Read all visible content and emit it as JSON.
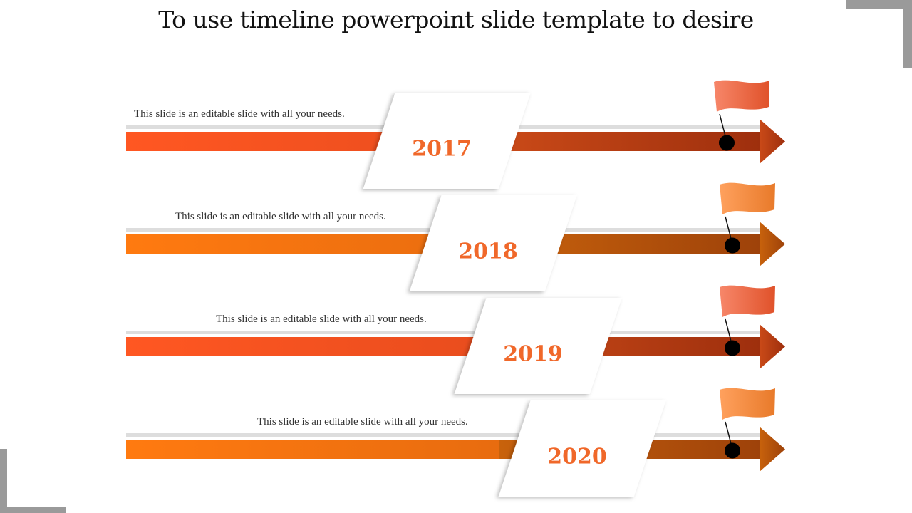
{
  "title": "To use timeline powerpoint slide template to desire",
  "colors": {
    "accent_orange": "#f26522",
    "year_text": "#f0682a",
    "dark_rust": "#a0340f",
    "rail_gray": "#dddddd",
    "corner_gray": "#9a9a9a"
  },
  "timeline": [
    {
      "year": "2017",
      "caption": "This slide is an editable slide with all your needs.",
      "flag_icon": "flag-icon"
    },
    {
      "year": "2018",
      "caption": "This slide is an editable slide with all your needs.",
      "flag_icon": "flag-icon"
    },
    {
      "year": "2019",
      "caption": "This slide is an editable slide with all your needs.",
      "flag_icon": "flag-icon"
    },
    {
      "year": "2020",
      "caption": "This slide is an editable slide with all your needs.",
      "flag_icon": "flag-icon"
    }
  ]
}
